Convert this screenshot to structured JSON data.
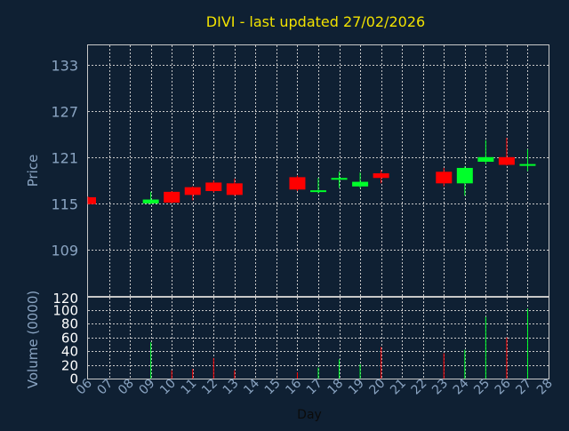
{
  "chart_data": {
    "type": "candlestick",
    "title": "DIVI - last updated 27/02/2026",
    "xlabel": "Day",
    "price_ylabel": "Price",
    "volume_ylabel": "Volume (0000)",
    "price_ticks": [
      "133",
      "127",
      "121",
      "115",
      "109"
    ],
    "price_tick_values": [
      133,
      127,
      121,
      115,
      109
    ],
    "price_ylim": [
      103,
      135.5
    ],
    "volume_top_label": "120",
    "volume_ticks": [
      "100",
      "80",
      "60",
      "40",
      "20",
      "0"
    ],
    "volume_tick_values": [
      100,
      80,
      60,
      40,
      20,
      0
    ],
    "volume_ylim": [
      0,
      118
    ],
    "days": [
      "06",
      "07",
      "08",
      "09",
      "10",
      "11",
      "12",
      "13",
      "14",
      "15",
      "16",
      "17",
      "18",
      "19",
      "20",
      "21",
      "22",
      "23",
      "24",
      "25",
      "26",
      "27",
      "28"
    ],
    "candles": [
      {
        "day": "06",
        "open": 115.8,
        "close": 114.9,
        "high": 115.9,
        "low": 114.9,
        "volume": 0
      },
      {
        "day": "09",
        "open": 115.0,
        "close": 115.5,
        "high": 116.5,
        "low": 114.9,
        "volume": 53
      },
      {
        "day": "10",
        "open": 116.5,
        "close": 115.1,
        "high": 116.6,
        "low": 115.0,
        "volume": 12
      },
      {
        "day": "11",
        "open": 117.1,
        "close": 116.1,
        "high": 117.2,
        "low": 115.4,
        "volume": 14
      },
      {
        "day": "12",
        "open": 117.7,
        "close": 116.6,
        "high": 118.0,
        "low": 116.4,
        "volume": 30
      },
      {
        "day": "13",
        "open": 117.6,
        "close": 116.1,
        "high": 118.2,
        "low": 116.0,
        "volume": 12
      },
      {
        "day": "16",
        "open": 118.4,
        "close": 116.8,
        "high": 118.6,
        "low": 116.6,
        "volume": 9
      },
      {
        "day": "17",
        "open": 116.6,
        "close": 116.7,
        "high": 118.3,
        "low": 116.3,
        "volume": 16
      },
      {
        "day": "18",
        "open": 118.1,
        "close": 118.3,
        "high": 119.1,
        "low": 117.0,
        "volume": 28
      },
      {
        "day": "19",
        "open": 117.2,
        "close": 117.8,
        "high": 119.0,
        "low": 117.0,
        "volume": 21
      },
      {
        "day": "20",
        "open": 118.9,
        "close": 118.3,
        "high": 119.3,
        "low": 117.6,
        "volume": 46
      },
      {
        "day": "23",
        "open": 119.1,
        "close": 117.6,
        "high": 119.6,
        "low": 117.2,
        "volume": 37
      },
      {
        "day": "24",
        "open": 117.6,
        "close": 119.6,
        "high": 119.8,
        "low": 116.0,
        "volume": 42
      },
      {
        "day": "25",
        "open": 120.4,
        "close": 121.0,
        "high": 123.2,
        "low": 120.1,
        "volume": 90
      },
      {
        "day": "26",
        "open": 121.0,
        "close": 120.0,
        "high": 123.5,
        "low": 119.9,
        "volume": 60
      },
      {
        "day": "27",
        "open": 120.1,
        "close": 120.1,
        "high": 122.0,
        "low": 119.2,
        "volume": 102
      }
    ],
    "colors": {
      "background": "#0f2033",
      "up": "#00ff2a",
      "down": "#ff0000",
      "grid": "#c8c8c8",
      "axis_text": "#8aa4c2",
      "title": "#f2e200"
    },
    "grid": true
  }
}
